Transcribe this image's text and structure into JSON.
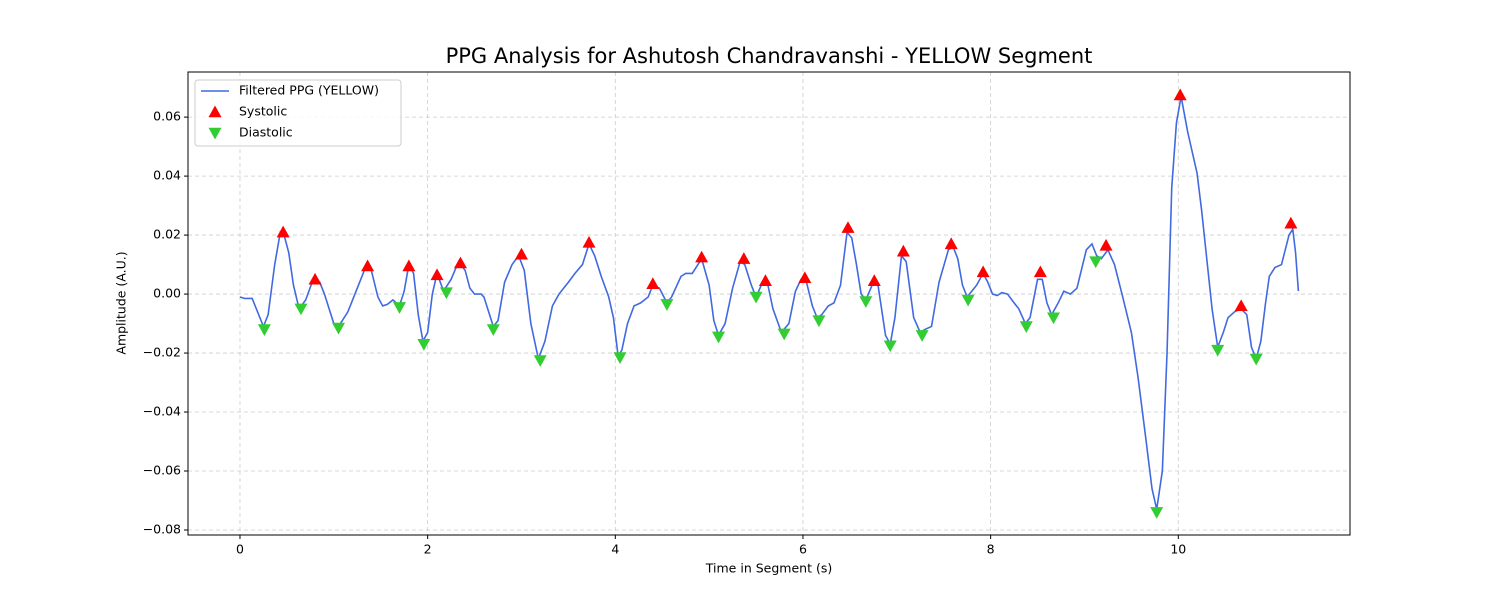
{
  "chart_data": {
    "type": "line",
    "title": "PPG Analysis for Ashutosh Chandravanshi - YELLOW Segment",
    "x_label": "Time in Segment (s)",
    "y_label": "Amplitude (A.U.)",
    "xlim": [
      -0.554,
      11.83
    ],
    "ylim": [
      -0.0817,
      0.0753
    ],
    "xticks": [
      0,
      2,
      4,
      6,
      8,
      10
    ],
    "yticks": [
      {
        "value": -0.08,
        "label": "−0.08"
      },
      {
        "value": -0.06,
        "label": "−0.06"
      },
      {
        "value": -0.04,
        "label": "−0.04"
      },
      {
        "value": -0.02,
        "label": "−0.02"
      },
      {
        "value": 0,
        "label": "0.00"
      },
      {
        "value": 0.02,
        "label": "0.02"
      },
      {
        "value": 0.04,
        "label": "0.04"
      },
      {
        "value": 0.06,
        "label": "0.06"
      }
    ],
    "grid": true,
    "legend": "upper left",
    "series": [
      {
        "name": "Filtered PPG (YELLOW)",
        "type": "line",
        "color": "#4169e1",
        "x": [
          0,
          0.05,
          0.13,
          0.25,
          0.3,
          0.37,
          0.43,
          0.47,
          0.52,
          0.57,
          0.63,
          0.7,
          0.78,
          0.85,
          0.9,
          1.0,
          1.05,
          1.15,
          1.25,
          1.35,
          1.4,
          1.47,
          1.52,
          1.57,
          1.63,
          1.7,
          1.75,
          1.8,
          1.85,
          1.9,
          1.95,
          2.0,
          2.05,
          2.1,
          2.17,
          2.25,
          2.33,
          2.4,
          2.45,
          2.5,
          2.57,
          2.6,
          2.65,
          2.7,
          2.75,
          2.82,
          2.9,
          2.97,
          3.03,
          3.1,
          3.18,
          3.25,
          3.33,
          3.4,
          3.5,
          3.57,
          3.65,
          3.72,
          3.78,
          3.85,
          3.93,
          3.98,
          4.03,
          4.07,
          4.13,
          4.2,
          4.27,
          4.35,
          4.4,
          4.47,
          4.55,
          4.6,
          4.7,
          4.75,
          4.82,
          4.92,
          5.0,
          5.05,
          5.1,
          5.17,
          5.25,
          5.33,
          5.38,
          5.45,
          5.5,
          5.57,
          5.62,
          5.68,
          5.77,
          5.85,
          5.92,
          5.98,
          6.03,
          6.1,
          6.15,
          6.2,
          6.27,
          6.33,
          6.4,
          6.47,
          6.52,
          6.57,
          6.62,
          6.67,
          6.75,
          6.8,
          6.88,
          6.93,
          6.98,
          7.05,
          7.1,
          7.18,
          7.25,
          7.3,
          7.37,
          7.45,
          7.55,
          7.6,
          7.65,
          7.7,
          7.75,
          7.85,
          7.92,
          7.97,
          8.02,
          8.07,
          8.12,
          8.18,
          8.25,
          8.3,
          8.37,
          8.42,
          8.5,
          8.55,
          8.6,
          8.65,
          8.72,
          8.78,
          8.85,
          8.92,
          9.02,
          9.08,
          9.13,
          9.18,
          9.25,
          9.32,
          9.4,
          9.5,
          9.57,
          9.65,
          9.72,
          9.77,
          9.83,
          9.88,
          9.93,
          9.98,
          10.03,
          10.1,
          10.2,
          10.25,
          10.3,
          10.36,
          10.42,
          10.48,
          10.53,
          10.6,
          10.67,
          10.73,
          10.78,
          10.83,
          10.88,
          10.93,
          10.97,
          11.03,
          11.1,
          11.18,
          11.22,
          11.25,
          11.28
        ],
        "values": [
          -0.001,
          -0.0015,
          -0.0015,
          -0.011,
          -0.007,
          0.01,
          0.021,
          0.02,
          0.014,
          0.003,
          -0.005,
          -0.002,
          0.005,
          0.004,
          0.0,
          -0.01,
          -0.011,
          -0.006,
          0.002,
          0.01,
          0.008,
          -0.001,
          -0.004,
          -0.0035,
          -0.002,
          -0.004,
          0.001,
          0.01,
          0.007,
          -0.007,
          -0.016,
          -0.013,
          0.0,
          0.007,
          0.001,
          0.005,
          0.011,
          0.008,
          0.002,
          0.0,
          0.0,
          -0.001,
          -0.006,
          -0.011,
          -0.009,
          0.004,
          0.01,
          0.013,
          0.008,
          -0.01,
          -0.022,
          -0.016,
          -0.004,
          0.0,
          0.004,
          0.007,
          0.01,
          0.017,
          0.013,
          0.006,
          -0.001,
          -0.008,
          -0.021,
          -0.019,
          -0.01,
          -0.004,
          -0.003,
          -0.001,
          0.003,
          0.002,
          -0.003,
          -0.001,
          0.006,
          0.007,
          0.007,
          0.012,
          0.003,
          -0.009,
          -0.014,
          -0.01,
          0.002,
          0.011,
          0.01,
          0.003,
          -0.001,
          0.004,
          0.004,
          -0.005,
          -0.013,
          -0.01,
          0.001,
          0.005,
          0.005,
          -0.004,
          -0.008,
          -0.007,
          -0.004,
          -0.003,
          0.003,
          0.021,
          0.019,
          0.01,
          0.0,
          -0.002,
          0.004,
          0.003,
          -0.014,
          -0.017,
          -0.008,
          0.013,
          0.011,
          -0.008,
          -0.013,
          -0.012,
          -0.011,
          0.004,
          0.015,
          0.016,
          0.012,
          0.003,
          -0.001,
          0.003,
          0.007,
          0.004,
          0.0,
          -0.0005,
          0.0005,
          0.0,
          -0.003,
          -0.005,
          -0.01,
          -0.008,
          0.005,
          0.005,
          -0.003,
          -0.007,
          -0.003,
          0.001,
          0.0,
          0.002,
          0.015,
          0.017,
          0.013,
          0.012,
          0.015,
          0.01,
          0.0,
          -0.013,
          -0.028,
          -0.048,
          -0.066,
          -0.073,
          -0.06,
          -0.02,
          0.036,
          0.058,
          0.067,
          0.055,
          0.041,
          0.028,
          0.013,
          -0.005,
          -0.018,
          -0.013,
          -0.008,
          -0.006,
          -0.005,
          -0.007,
          -0.018,
          -0.022,
          -0.016,
          -0.003,
          0.006,
          0.009,
          0.01,
          0.02,
          0.022,
          0.014,
          0.001
        ]
      },
      {
        "name": "Systolic",
        "type": "scatter",
        "marker": "^",
        "color": "#ff0000",
        "x": [
          0.46,
          0.8,
          1.36,
          1.8,
          2.1,
          2.35,
          3.0,
          3.72,
          4.4,
          4.92,
          5.37,
          5.6,
          6.02,
          6.48,
          6.76,
          7.07,
          7.58,
          7.92,
          8.53,
          9.23,
          10.02,
          10.67,
          11.2
        ],
        "values": [
          0.021,
          0.005,
          0.0095,
          0.0095,
          0.0065,
          0.0105,
          0.0135,
          0.0175,
          0.0035,
          0.0125,
          0.012,
          0.0045,
          0.0055,
          0.0225,
          0.0045,
          0.0145,
          0.017,
          0.0075,
          0.0075,
          0.0165,
          0.0675,
          -0.004,
          0.024
        ]
      },
      {
        "name": "Diastolic",
        "type": "scatter",
        "marker": "v",
        "color": "#32cd32",
        "x": [
          0.26,
          0.65,
          1.05,
          1.7,
          1.96,
          2.2,
          2.7,
          3.2,
          4.05,
          4.55,
          5.1,
          5.5,
          5.8,
          6.17,
          6.67,
          6.93,
          7.27,
          7.76,
          8.38,
          8.67,
          9.12,
          9.77,
          10.42,
          10.83
        ],
        "values": [
          -0.012,
          -0.005,
          -0.0115,
          -0.0045,
          -0.017,
          0.0005,
          -0.012,
          -0.0225,
          -0.0215,
          -0.0035,
          -0.0145,
          -0.001,
          -0.0135,
          -0.009,
          -0.0025,
          -0.0175,
          -0.014,
          -0.002,
          -0.011,
          -0.008,
          0.011,
          -0.074,
          -0.019,
          -0.022
        ]
      }
    ]
  }
}
